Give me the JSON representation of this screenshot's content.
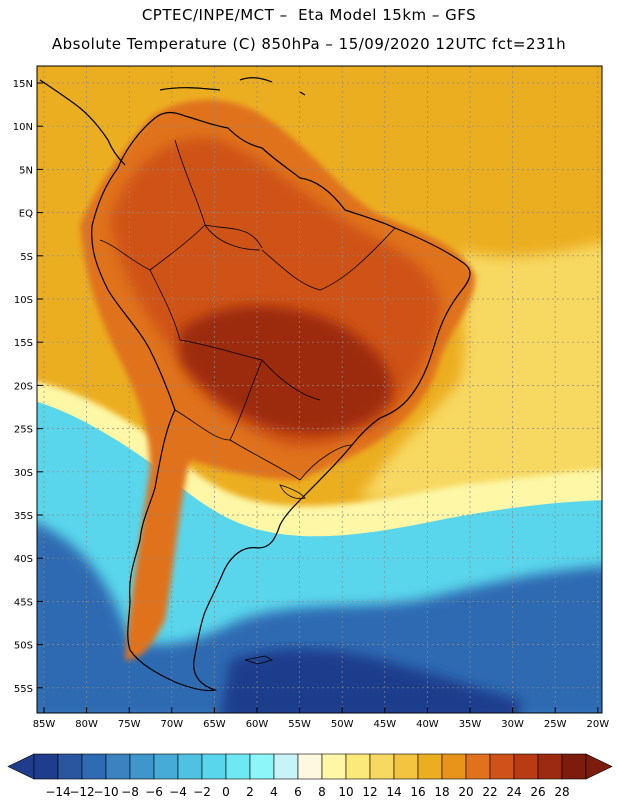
{
  "header": {
    "line1": "CPTEC/INPE/MCT –  Eta Model 15km – GFS",
    "line2": "Absolute Temperature (C) 850hPa – 15/09/2020 12UTC fct=231h"
  },
  "axes": {
    "lat_labels": [
      "15N",
      "10N",
      "5N",
      "EQ",
      "5S",
      "10S",
      "15S",
      "20S",
      "25S",
      "30S",
      "35S",
      "40S",
      "45S",
      "50S",
      "55S"
    ],
    "lon_labels": [
      "85W",
      "80W",
      "75W",
      "70W",
      "65W",
      "60W",
      "55W",
      "50W",
      "45W",
      "40W",
      "35W",
      "30W",
      "25W",
      "20W"
    ]
  },
  "colorbar": {
    "labels": [
      "-14",
      "-12",
      "-10",
      "-8",
      "-6",
      "-4",
      "-2",
      "0",
      "2",
      "4",
      "6",
      "8",
      "10",
      "12",
      "14",
      "16",
      "18",
      "20",
      "22",
      "24",
      "26",
      "28"
    ],
    "colors": [
      "#1f3d8c",
      "#2a56a0",
      "#2f6bb2",
      "#3a82c0",
      "#3f96ca",
      "#46abd6",
      "#4fc2e2",
      "#5ad6ec",
      "#6ee8f2",
      "#8cf6f8",
      "#c8f4f8",
      "#fdf8e0",
      "#fdf7a6",
      "#fbe97a",
      "#f7d860",
      "#f2c43f",
      "#ecae21",
      "#e8941a",
      "#e0721e",
      "#cf5219",
      "#b83b14",
      "#9c2a10",
      "#7c1c0c"
    ],
    "under_color": "#1f3d8c",
    "over_color": "#7c1c0c"
  },
  "map_colors": {
    "equatorial_ocean": "#ecae21",
    "subtropical_ocean": "#f7d860",
    "cold_front_band": "#fdf7a6",
    "ocean_midlat": "#5ad6ec",
    "ocean_south": "#2f6bb2",
    "hot_core": "#9c2a10",
    "grid_line": "#8a8a8a",
    "coast_line": "#000000"
  }
}
